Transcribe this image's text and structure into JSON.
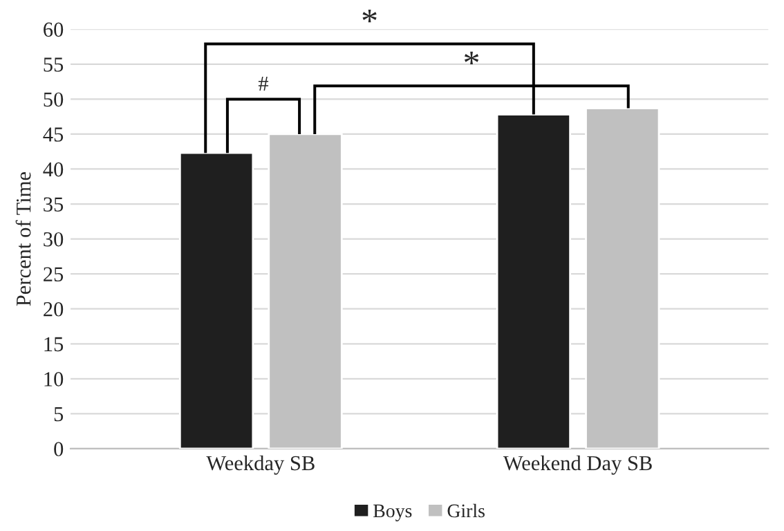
{
  "chart_data": {
    "type": "bar",
    "ylabel": "Percent of Time",
    "categories": [
      "Weekday SB",
      "Weekend Day SB"
    ],
    "series": [
      {
        "name": "Boys",
        "color": "#1f1f1f",
        "values": [
          42.3,
          47.8
        ]
      },
      {
        "name": "Girls",
        "color": "#c0c0c0",
        "values": [
          45.0,
          48.7
        ]
      }
    ],
    "ylim": [
      0,
      60
    ],
    "yticks": [
      0,
      5,
      10,
      15,
      20,
      25,
      30,
      35,
      40,
      45,
      50,
      55,
      60
    ],
    "grid": "y",
    "legend": "bottom",
    "annotations": [
      "#",
      "*",
      "*"
    ]
  }
}
